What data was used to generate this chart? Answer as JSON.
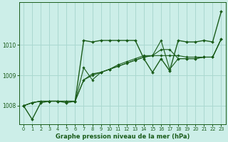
{
  "title": "Graphe pression niveau de la mer (hPa)",
  "bg_color": "#cceee8",
  "grid_color": "#aad8d0",
  "line_color": "#1a5c1a",
  "marker_color": "#1a5c1a",
  "xlim": [
    -0.5,
    23.5
  ],
  "ylim": [
    1007.4,
    1011.4
  ],
  "yticks": [
    1008,
    1009,
    1010
  ],
  "xticks": [
    0,
    1,
    2,
    3,
    4,
    5,
    6,
    7,
    8,
    9,
    10,
    11,
    12,
    13,
    14,
    15,
    16,
    17,
    18,
    19,
    20,
    21,
    22,
    23
  ],
  "series": [
    [
      1008.0,
      1007.55,
      1008.1,
      1008.15,
      1008.15,
      1008.1,
      1008.15,
      1010.15,
      1010.1,
      1010.15,
      1010.15,
      1010.15,
      1010.15,
      1010.15,
      1009.55,
      1009.1,
      1009.55,
      1009.15,
      1010.15,
      1010.1,
      1010.1,
      1010.15,
      1010.1,
      1011.1
    ],
    [
      1008.0,
      1008.1,
      1008.15,
      1008.15,
      1008.15,
      1008.15,
      1008.15,
      1009.25,
      1008.85,
      1009.1,
      1009.2,
      1009.35,
      1009.45,
      1009.55,
      1009.65,
      1009.65,
      1009.65,
      1009.65,
      1009.65,
      1009.6,
      1009.6,
      1009.6,
      1009.6,
      1010.2
    ],
    [
      1008.0,
      1008.1,
      1008.15,
      1008.15,
      1008.15,
      1008.15,
      1008.15,
      1008.85,
      1009.05,
      1009.1,
      1009.2,
      1009.3,
      1009.4,
      1009.5,
      1009.6,
      1009.65,
      1010.15,
      1009.2,
      1009.55,
      1009.55,
      1009.55,
      1009.6,
      1009.6,
      1010.2
    ],
    [
      1008.0,
      1008.1,
      1008.15,
      1008.15,
      1008.15,
      1008.15,
      1008.15,
      1008.85,
      1009.0,
      1009.1,
      1009.2,
      1009.3,
      1009.4,
      1009.5,
      1009.6,
      1009.65,
      1009.85,
      1009.85,
      1009.55,
      1009.55,
      1009.55,
      1009.6,
      1009.6,
      1010.2
    ]
  ]
}
